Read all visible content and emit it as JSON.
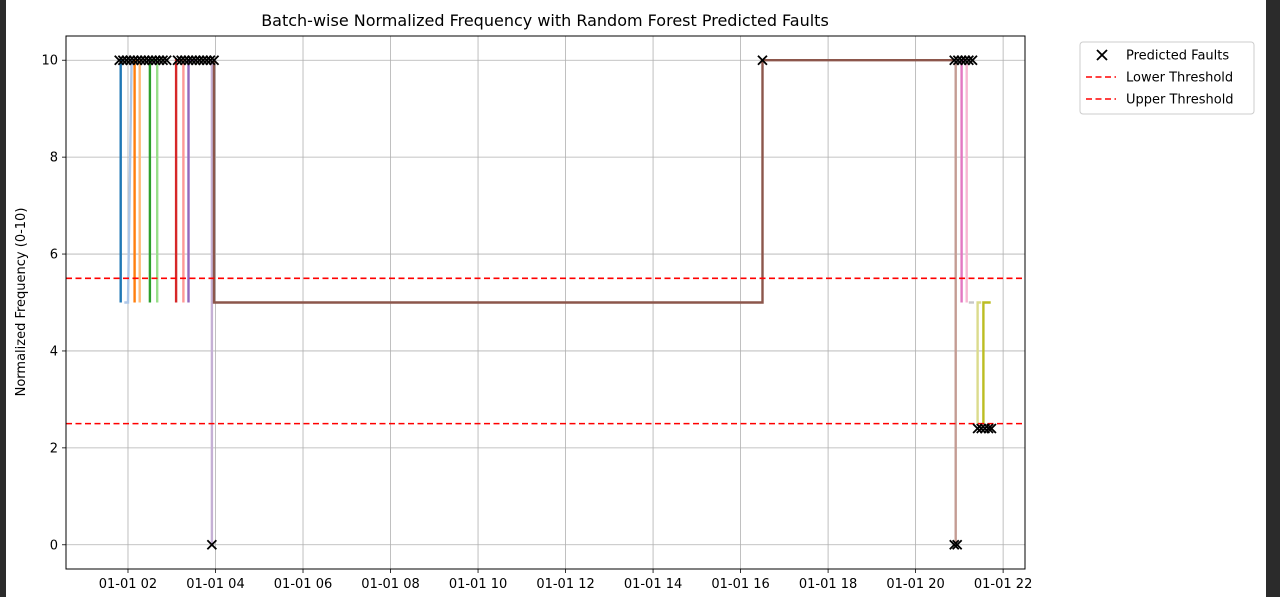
{
  "chart_data": {
    "type": "line",
    "title": "Batch-wise Normalized Frequency with Random Forest Predicted Faults",
    "xlabel": "",
    "ylabel": "Normalized Frequency (0-10)",
    "xlim": [
      "01-01 00:35",
      "01-01 22:30"
    ],
    "ylim": [
      -0.5,
      10.5
    ],
    "x_ticks": [
      "01-01 02",
      "01-01 04",
      "01-01 06",
      "01-01 08",
      "01-01 10",
      "01-01 12",
      "01-01 14",
      "01-01 16",
      "01-01 18",
      "01-01 20",
      "01-01 22"
    ],
    "y_ticks": [
      0,
      2,
      4,
      6,
      8,
      10
    ],
    "grid": true,
    "legend": {
      "placement": "outside-top-right",
      "entries": [
        {
          "label": "Predicted Faults",
          "marker": "x",
          "color": "#000000"
        },
        {
          "label": "Lower Threshold",
          "style": "dashed",
          "color": "#ff0000"
        },
        {
          "label": "Upper Threshold",
          "style": "dashed",
          "color": "#ff0000"
        }
      ]
    },
    "thresholds": [
      {
        "name": "Lower Threshold",
        "value": 5.5,
        "color": "#ff0000"
      },
      {
        "name": "Upper Threshold",
        "value": 2.5,
        "color": "#ff0000"
      }
    ],
    "series": [
      {
        "color": "#1f77b4",
        "x": [
          "01-01 01:50",
          "01-01 01:50",
          "01-01 01:55"
        ],
        "y": [
          5,
          10,
          10
        ]
      },
      {
        "color": "#aec7e8",
        "x": [
          "01-01 01:55",
          "01-01 02:00",
          "01-01 02:05"
        ],
        "y": [
          5,
          5,
          10
        ]
      },
      {
        "color": "#ff7f0e",
        "x": [
          "01-01 02:09",
          "01-01 02:09",
          "01-01 02:13"
        ],
        "y": [
          5,
          10,
          10
        ]
      },
      {
        "color": "#ffbb78",
        "x": [
          "01-01 02:16",
          "01-01 02:16",
          "01-01 02:20"
        ],
        "y": [
          5,
          10,
          10
        ]
      },
      {
        "color": "#2ca02c",
        "x": [
          "01-01 02:30",
          "01-01 02:30",
          "01-01 02:38"
        ],
        "y": [
          5,
          10,
          10
        ]
      },
      {
        "color": "#98df8a",
        "x": [
          "01-01 02:40",
          "01-01 02:40",
          "01-01 02:45"
        ],
        "y": [
          5,
          10,
          10
        ]
      },
      {
        "color": "#d62728",
        "x": [
          "01-01 03:06",
          "01-01 03:06",
          "01-01 03:13"
        ],
        "y": [
          5,
          10,
          10
        ]
      },
      {
        "color": "#ff9896",
        "x": [
          "01-01 03:16",
          "01-01 03:16",
          "01-01 03:20"
        ],
        "y": [
          5,
          10,
          10
        ]
      },
      {
        "color": "#9467bd",
        "x": [
          "01-01 03:23",
          "01-01 03:23",
          "01-01 03:33"
        ],
        "y": [
          5,
          10,
          10
        ]
      },
      {
        "color": "#c5b0d5",
        "x": [
          "01-01 03:55",
          "01-01 03:55",
          "01-01 03:55"
        ],
        "y": [
          10,
          0,
          5
        ]
      },
      {
        "color": "#8c564b",
        "x": [
          "01-01 03:58",
          "01-01 03:58",
          "01-01 16:30",
          "01-01 16:30",
          "01-01 20:55"
        ],
        "y": [
          10,
          5,
          5,
          10,
          10
        ]
      },
      {
        "color": "#c49c94",
        "x": [
          "01-01 20:55",
          "01-01 20:55"
        ],
        "y": [
          10,
          0
        ]
      },
      {
        "color": "#e377c2",
        "x": [
          "01-01 21:03",
          "01-01 21:03",
          "01-01 21:08"
        ],
        "y": [
          5,
          10,
          10
        ]
      },
      {
        "color": "#f7b6d2",
        "x": [
          "01-01 21:10",
          "01-01 21:10"
        ],
        "y": [
          5,
          10
        ]
      },
      {
        "color": "#c7c7c7",
        "x": [
          "01-01 21:13",
          "01-01 21:20"
        ],
        "y": [
          5,
          5
        ]
      },
      {
        "color": "#dbdb8d",
        "x": [
          "01-01 21:25",
          "01-01 21:25",
          "01-01 21:30"
        ],
        "y": [
          2.5,
          5,
          5
        ]
      },
      {
        "color": "#bcbd22",
        "x": [
          "01-01 21:33",
          "01-01 21:33",
          "01-01 21:43"
        ],
        "y": [
          2.5,
          5,
          5
        ]
      }
    ],
    "faults": {
      "label": "Predicted Faults",
      "points": [
        [
          "01-01 01:48",
          10
        ],
        [
          "01-01 01:53",
          10
        ],
        [
          "01-01 01:58",
          10
        ],
        [
          "01-01 02:03",
          10
        ],
        [
          "01-01 02:08",
          10
        ],
        [
          "01-01 02:13",
          10
        ],
        [
          "01-01 02:18",
          10
        ],
        [
          "01-01 02:23",
          10
        ],
        [
          "01-01 02:28",
          10
        ],
        [
          "01-01 02:33",
          10
        ],
        [
          "01-01 02:38",
          10
        ],
        [
          "01-01 02:43",
          10
        ],
        [
          "01-01 02:48",
          10
        ],
        [
          "01-01 02:53",
          10
        ],
        [
          "01-01 03:08",
          10
        ],
        [
          "01-01 03:13",
          10
        ],
        [
          "01-01 03:18",
          10
        ],
        [
          "01-01 03:23",
          10
        ],
        [
          "01-01 03:28",
          10
        ],
        [
          "01-01 03:33",
          10
        ],
        [
          "01-01 03:38",
          10
        ],
        [
          "01-01 03:43",
          10
        ],
        [
          "01-01 03:48",
          10
        ],
        [
          "01-01 03:53",
          10
        ],
        [
          "01-01 03:58",
          10
        ],
        [
          "01-01 03:55",
          0
        ],
        [
          "01-01 16:30",
          10
        ],
        [
          "01-01 20:53",
          10
        ],
        [
          "01-01 20:58",
          10
        ],
        [
          "01-01 21:03",
          10
        ],
        [
          "01-01 21:08",
          10
        ],
        [
          "01-01 21:13",
          10
        ],
        [
          "01-01 21:18",
          10
        ],
        [
          "01-01 20:53",
          0
        ],
        [
          "01-01 20:57",
          0
        ],
        [
          "01-01 21:25",
          2.4
        ],
        [
          "01-01 21:30",
          2.4
        ],
        [
          "01-01 21:35",
          2.4
        ],
        [
          "01-01 21:40",
          2.4
        ],
        [
          "01-01 21:44",
          2.4
        ]
      ]
    }
  }
}
